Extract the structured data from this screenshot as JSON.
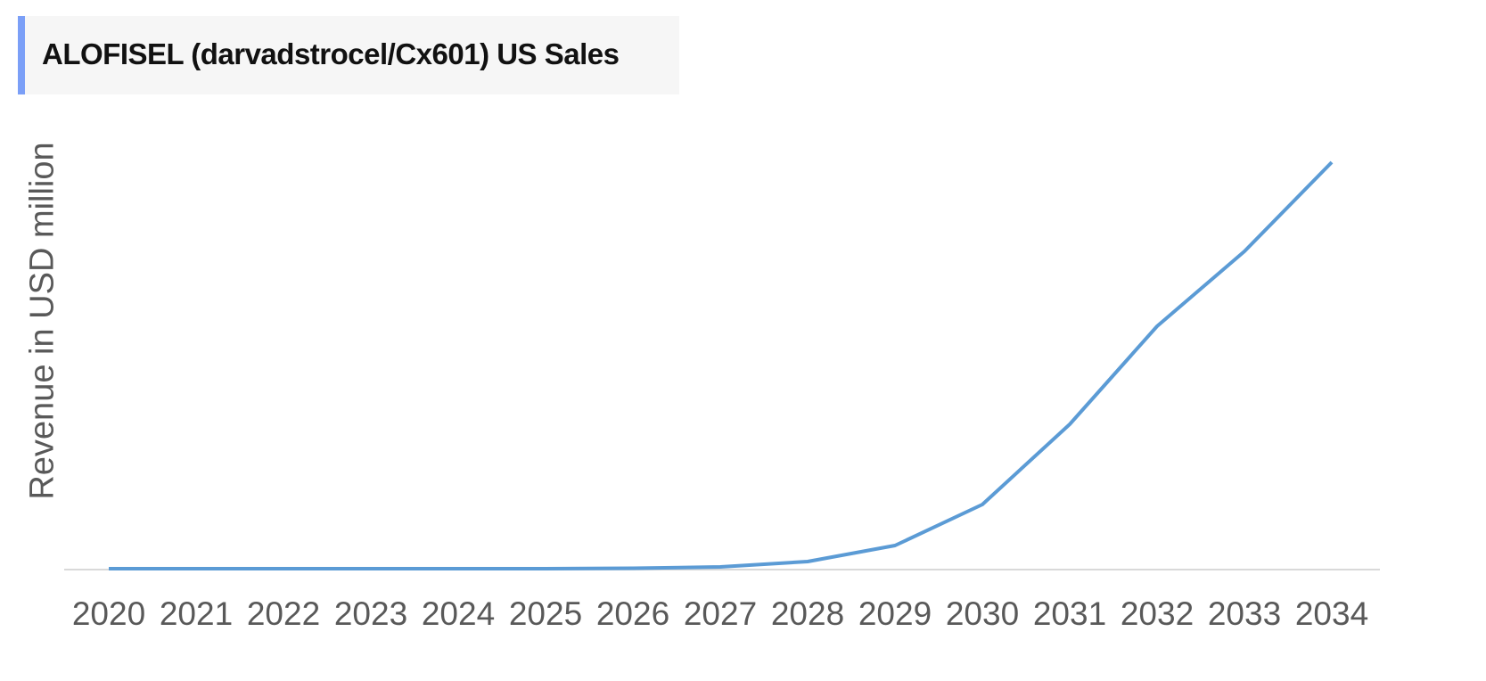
{
  "title": "ALOFISEL (darvadstrocel/Cx601) US Sales",
  "colors": {
    "accent_bar": "#7b9ff7",
    "line": "#5b9bd5",
    "axis": "#d9d9d9",
    "tick_text": "#595959"
  },
  "chart_data": {
    "type": "line",
    "title": "ALOFISEL (darvadstrocel/Cx601) US Sales",
    "xlabel": "",
    "ylabel": "Revenue in USD million",
    "categories": [
      "2020",
      "2021",
      "2022",
      "2023",
      "2024",
      "2025",
      "2026",
      "2027",
      "2028",
      "2029",
      "2030",
      "2031",
      "2032",
      "2033",
      "2034"
    ],
    "series": [
      {
        "name": "US Sales",
        "values": [
          0,
          0,
          0,
          0,
          0,
          0,
          0.5,
          2,
          8,
          26,
          72,
          162,
          272,
          356,
          456
        ]
      }
    ],
    "ylim": [
      0,
      456
    ],
    "y_units_note": "relative (no y tick labels shown)",
    "grid": false,
    "legend": "none"
  }
}
